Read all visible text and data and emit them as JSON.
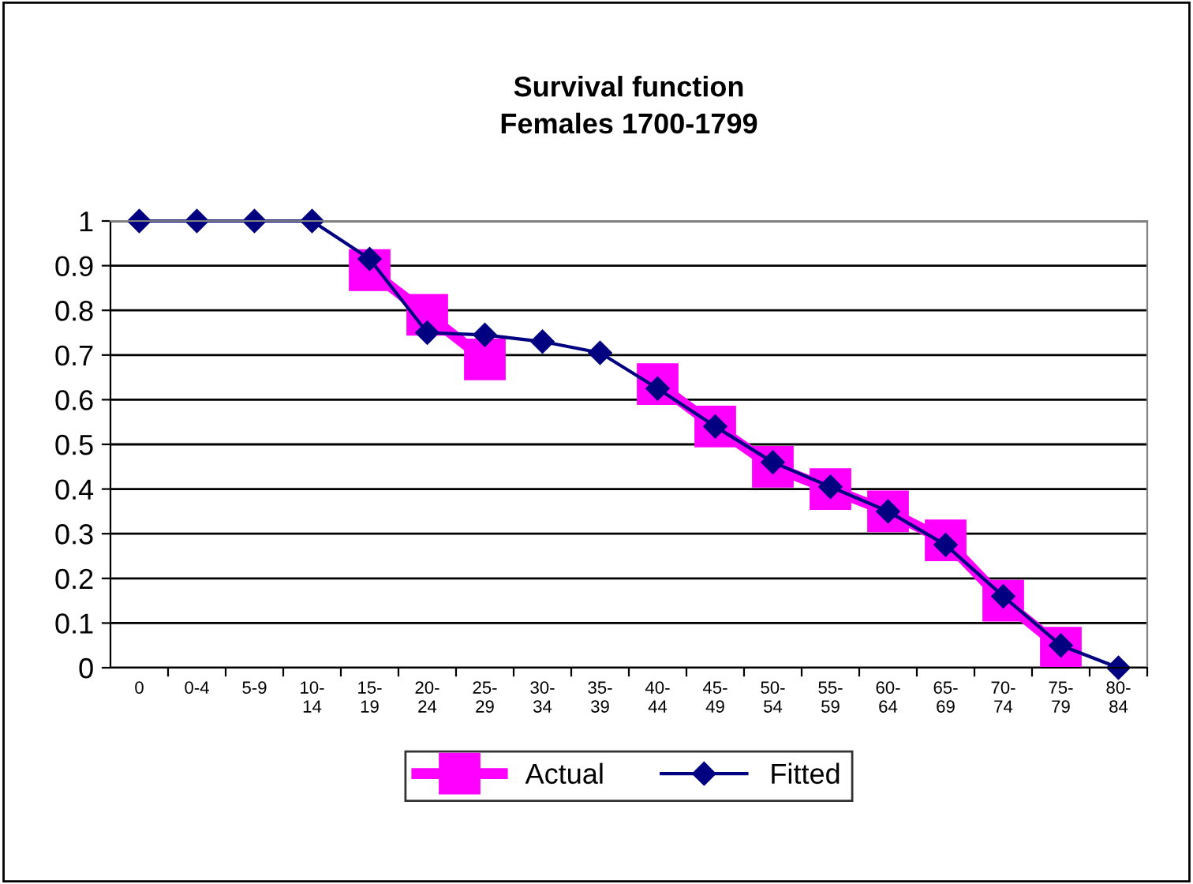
{
  "chart_data": {
    "type": "line",
    "title": "Survival function\nFemales 1700-1799",
    "categories": [
      "0",
      "0-4",
      "5-9",
      "10-14",
      "15-19",
      "20-24",
      "25-29",
      "30-34",
      "35-39",
      "40-44",
      "45-49",
      "50-54",
      "55-59",
      "60-64",
      "65-69",
      "70-74",
      "75-79",
      "80-84"
    ],
    "series": [
      {
        "name": "Actual",
        "color": "#ff00ff",
        "marker": "square",
        "values": [
          null,
          null,
          null,
          null,
          0.89,
          0.79,
          0.69,
          null,
          null,
          0.635,
          0.54,
          0.45,
          0.4,
          0.35,
          0.285,
          0.15,
          0.045,
          null
        ]
      },
      {
        "name": "Fitted",
        "color": "#000080",
        "marker": "diamond",
        "values": [
          1,
          1,
          1,
          1,
          0.915,
          0.75,
          0.745,
          0.73,
          0.705,
          0.625,
          0.54,
          0.46,
          0.405,
          0.35,
          0.275,
          0.16,
          0.05,
          0
        ]
      }
    ],
    "ylim": [
      0,
      1
    ],
    "yticks": [
      0,
      0.1,
      0.2,
      0.3,
      0.4,
      0.5,
      0.6,
      0.7,
      0.8,
      0.9,
      1
    ],
    "grid": "y",
    "legend": "bottom"
  }
}
